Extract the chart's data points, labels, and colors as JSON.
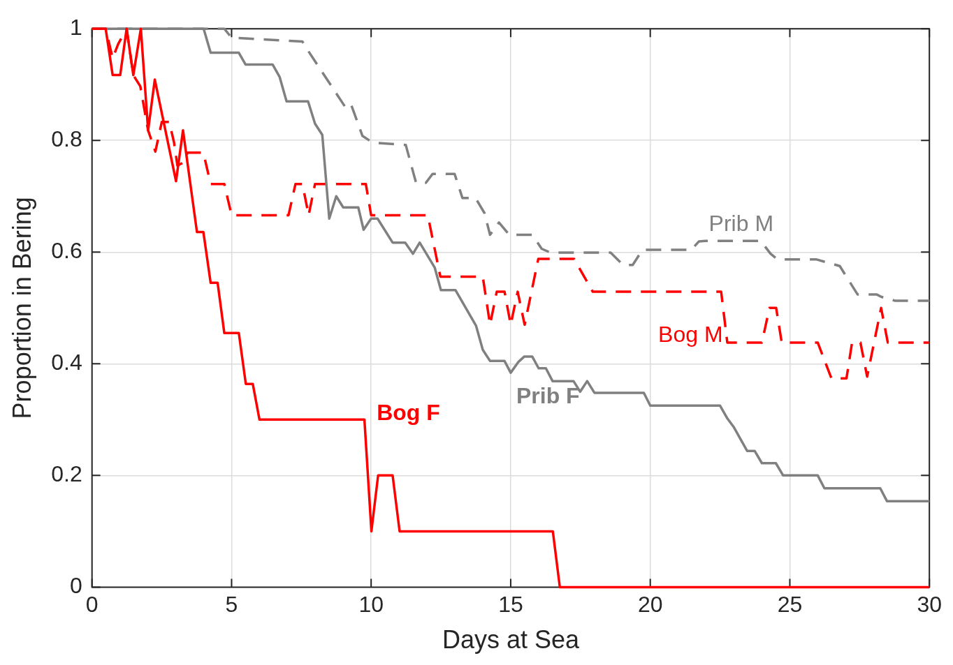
{
  "chart_data": {
    "type": "line",
    "xlabel": "Days at Sea",
    "ylabel": "Proportion in Bering",
    "xlim": [
      0,
      30
    ],
    "xticks": [
      0,
      5,
      10,
      15,
      20,
      25,
      30
    ],
    "ylim": [
      0,
      1
    ],
    "yticks": [
      0,
      0.2,
      0.4,
      0.6,
      0.8,
      1
    ],
    "grid": true,
    "legend": false,
    "marker": "none",
    "series": [
      {
        "name": "Bog F",
        "color": "#ff0000",
        "line_style": "solid",
        "x": [
          0,
          0.49,
          0.74,
          1.01,
          1.24,
          1.48,
          1.75,
          2.01,
          2.25,
          3.01,
          3.26,
          3.76,
          3.99,
          4.25,
          4.5,
          4.74,
          5.26,
          5.51,
          5.76,
          6.0,
          9.76,
          10.01,
          10.25,
          10.77,
          11.02,
          16.51,
          16.76,
          30
        ],
        "values": [
          1,
          1,
          0.917,
          0.917,
          1,
          0.917,
          1,
          0.818,
          0.909,
          0.727,
          0.818,
          0.636,
          0.636,
          0.545,
          0.545,
          0.455,
          0.455,
          0.364,
          0.364,
          0.3,
          0.3,
          0.1,
          0.2,
          0.2,
          0.1,
          0.1,
          0,
          0
        ]
      },
      {
        "name": "Prib F",
        "color": "#808080",
        "line_style": "solid",
        "x": [
          0,
          4.0,
          4.25,
          5.26,
          5.5,
          6.47,
          6.72,
          6.97,
          7.74,
          7.99,
          8.25,
          8.5,
          8.75,
          9.0,
          9.54,
          9.73,
          10.0,
          10.23,
          10.77,
          11.22,
          11.5,
          11.74,
          12.28,
          12.5,
          13.02,
          13.76,
          14.0,
          14.26,
          14.78,
          15.0,
          15.27,
          15.49,
          15.77,
          16.0,
          16.26,
          16.5,
          17.25,
          17.49,
          17.74,
          18.0,
          19.77,
          20.0,
          22.5,
          22.75,
          23.0,
          23.47,
          23.74,
          24.0,
          24.5,
          24.76,
          26.0,
          26.24,
          28.24,
          28.48,
          30
        ],
        "values": [
          1,
          1,
          0.957,
          0.957,
          0.936,
          0.936,
          0.914,
          0.87,
          0.87,
          0.83,
          0.81,
          0.66,
          0.7,
          0.68,
          0.68,
          0.64,
          0.66,
          0.66,
          0.617,
          0.617,
          0.597,
          0.617,
          0.572,
          0.532,
          0.532,
          0.468,
          0.425,
          0.405,
          0.405,
          0.384,
          0.403,
          0.413,
          0.413,
          0.392,
          0.392,
          0.369,
          0.369,
          0.35,
          0.369,
          0.348,
          0.348,
          0.325,
          0.325,
          0.303,
          0.286,
          0.244,
          0.244,
          0.222,
          0.222,
          0.2,
          0.2,
          0.177,
          0.177,
          0.154,
          0.154
        ]
      },
      {
        "name": "Bog M",
        "color": "#ff0000",
        "line_style": "dashed",
        "x": [
          0,
          0.49,
          0.74,
          0.94,
          1.24,
          1.48,
          1.73,
          2.01,
          2.27,
          2.5,
          2.77,
          2.94,
          3.06,
          3.26,
          3.42,
          3.68,
          3.99,
          4.25,
          4.74,
          5.0,
          7.04,
          7.29,
          7.54,
          7.76,
          7.99,
          9.81,
          10.0,
          12.03,
          12.48,
          14.0,
          14.26,
          14.5,
          14.78,
          15.0,
          15.25,
          15.5,
          15.99,
          17.27,
          17.94,
          22.54,
          22.76,
          24.0,
          24.27,
          24.51,
          24.71,
          26.0,
          26.49,
          27.03,
          27.23,
          27.53,
          27.77,
          28.27,
          28.51,
          30
        ],
        "values": [
          1,
          1,
          0.947,
          0.973,
          1,
          0.917,
          0.897,
          0.818,
          0.78,
          0.833,
          0.833,
          0.796,
          0.755,
          0.76,
          0.778,
          0.778,
          0.778,
          0.722,
          0.722,
          0.666,
          0.666,
          0.722,
          0.722,
          0.666,
          0.722,
          0.722,
          0.666,
          0.666,
          0.556,
          0.556,
          0.47,
          0.529,
          0.529,
          0.47,
          0.529,
          0.47,
          0.588,
          0.588,
          0.529,
          0.529,
          0.438,
          0.438,
          0.5,
          0.5,
          0.438,
          0.438,
          0.374,
          0.374,
          0.438,
          0.438,
          0.377,
          0.5,
          0.438,
          0.438
        ]
      },
      {
        "name": "Prib M",
        "color": "#808080",
        "line_style": "dashed",
        "x": [
          0,
          4.74,
          5.0,
          7.54,
          7.71,
          9.07,
          9.12,
          9.27,
          9.69,
          10.06,
          11.24,
          11.61,
          11.96,
          12.2,
          12.99,
          13.27,
          13.74,
          14.06,
          14.26,
          14.58,
          14.95,
          15.77,
          16.11,
          16.43,
          18.58,
          19.03,
          19.37,
          19.72,
          21.47,
          21.74,
          21.97,
          23.96,
          24.31,
          24.56,
          25.94,
          26.79,
          27.43,
          28.12,
          28.27,
          28.76,
          30
        ],
        "values": [
          1,
          1,
          0.984,
          0.977,
          0.963,
          0.86,
          0.862,
          0.866,
          0.808,
          0.796,
          0.792,
          0.724,
          0.724,
          0.74,
          0.74,
          0.697,
          0.697,
          0.67,
          0.631,
          0.653,
          0.631,
          0.631,
          0.606,
          0.599,
          0.599,
          0.577,
          0.577,
          0.604,
          0.604,
          0.619,
          0.62,
          0.62,
          0.597,
          0.587,
          0.587,
          0.575,
          0.524,
          0.524,
          0.52,
          0.513,
          0.513
        ]
      }
    ]
  }
}
